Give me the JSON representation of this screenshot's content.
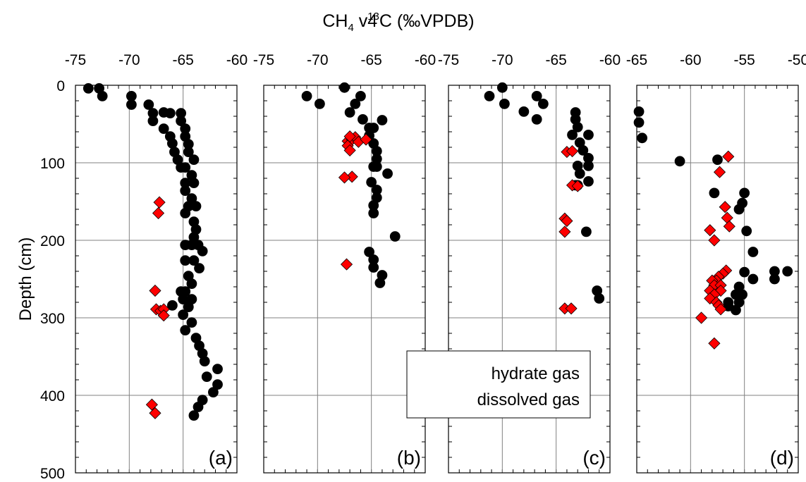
{
  "title": {
    "prefix": "CH",
    "subscript": "4",
    "middle": " v4",
    "superscript": "13",
    "suffix": "C (‰VPDB)"
  },
  "y_axis_label": "Depth (cm)",
  "legend": [
    "hydrate gas",
    "dissolved gas"
  ],
  "colors": {
    "hydrate": "#000000",
    "dissolved": "#ff0000",
    "grid": "#808080"
  },
  "chart_data": [
    {
      "type": "scatter",
      "panel_label": "(a)",
      "xlim": [
        -75,
        -60
      ],
      "x_ticks": [
        -75,
        -70,
        -65,
        -60
      ],
      "x_tick_labels": [
        "-75",
        "-70",
        "-65",
        "-60"
      ],
      "ylim": [
        0,
        500
      ],
      "y_ticks": [
        0,
        100,
        200,
        300,
        400,
        500
      ],
      "y_tick_labels": [
        "0",
        "100",
        "200",
        "300",
        "400",
        "500"
      ],
      "series": [
        {
          "marker": "circle",
          "color": "#000000",
          "points": [
            [
              -73.8,
              4
            ],
            [
              -72.8,
              4
            ],
            [
              -72.5,
              14
            ],
            [
              -69.8,
              14
            ],
            [
              -69.8,
              25
            ],
            [
              -68.2,
              25
            ],
            [
              -67.8,
              46
            ],
            [
              -67.8,
              36
            ],
            [
              -66.8,
              35
            ],
            [
              -66.2,
              36
            ],
            [
              -65.2,
              36
            ],
            [
              -65.2,
              46
            ],
            [
              -66.8,
              56
            ],
            [
              -66.2,
              66
            ],
            [
              -66,
              75
            ],
            [
              -65.8,
              86
            ],
            [
              -65.5,
              96
            ],
            [
              -65.2,
              106
            ],
            [
              -64.8,
              66
            ],
            [
              -64.8,
              56
            ],
            [
              -64.5,
              76
            ],
            [
              -64.5,
              86
            ],
            [
              -64,
              96
            ],
            [
              -64.8,
              106
            ],
            [
              -64.2,
              116
            ],
            [
              -64.8,
              126
            ],
            [
              -64,
              126
            ],
            [
              -64.8,
              136
            ],
            [
              -64.2,
              146
            ],
            [
              -64.5,
              156
            ],
            [
              -63.8,
              156
            ],
            [
              -64.8,
              165
            ],
            [
              -64,
              176
            ],
            [
              -63.8,
              186
            ],
            [
              -64,
              196
            ],
            [
              -64.8,
              206
            ],
            [
              -64.2,
              206
            ],
            [
              -63.6,
              206
            ],
            [
              -63.2,
              214
            ],
            [
              -64.8,
              226
            ],
            [
              -64,
              226
            ],
            [
              -63.5,
              236
            ],
            [
              -64.5,
              246
            ],
            [
              -64.2,
              256
            ],
            [
              -64.8,
              266
            ],
            [
              -65,
              276
            ],
            [
              -64.2,
              276
            ],
            [
              -65.2,
              266
            ],
            [
              -66,
              284
            ],
            [
              -64.5,
              286
            ],
            [
              -65,
              296
            ],
            [
              -64.8,
              316
            ],
            [
              -64.2,
              306
            ],
            [
              -63.8,
              326
            ],
            [
              -63.5,
              336
            ],
            [
              -63.2,
              346
            ],
            [
              -63,
              356
            ],
            [
              -61.8,
              366
            ],
            [
              -62.8,
              376
            ],
            [
              -61.8,
              386
            ],
            [
              -62.2,
              396
            ],
            [
              -63.2,
              406
            ],
            [
              -63.6,
              415
            ],
            [
              -64,
              426
            ]
          ]
        },
        {
          "marker": "diamond",
          "color": "#ff0000",
          "points": [
            [
              -67.2,
              151
            ],
            [
              -67.3,
              165
            ],
            [
              -67.6,
              265
            ],
            [
              -67.5,
              289
            ],
            [
              -67.1,
              291
            ],
            [
              -66.8,
              289
            ],
            [
              -66.8,
              297
            ],
            [
              -67.9,
              412
            ],
            [
              -67.6,
              423
            ]
          ]
        }
      ]
    },
    {
      "type": "scatter",
      "panel_label": "(b)",
      "xlim": [
        -75,
        -60
      ],
      "x_ticks": [
        -75,
        -70,
        -65,
        -60
      ],
      "x_tick_labels": [
        "-75",
        "-70",
        "-65",
        "-60"
      ],
      "ylim": [
        0,
        500
      ],
      "series": [
        {
          "marker": "circle",
          "color": "#000000",
          "points": [
            [
              -67.5,
              3
            ],
            [
              -71,
              14
            ],
            [
              -69.8,
              24
            ],
            [
              -66.5,
              24
            ],
            [
              -66,
              14
            ],
            [
              -67,
              35
            ],
            [
              -65.8,
              44
            ],
            [
              -64.8,
              55
            ],
            [
              -65.2,
              55
            ],
            [
              -64,
              45
            ],
            [
              -65.2,
              65
            ],
            [
              -64.8,
              75
            ],
            [
              -64.5,
              85
            ],
            [
              -64.5,
              95
            ],
            [
              -64.8,
              105
            ],
            [
              -64.5,
              105
            ],
            [
              -63.5,
              114
            ],
            [
              -65,
              125
            ],
            [
              -64.5,
              135
            ],
            [
              -64.5,
              145
            ],
            [
              -64.8,
              155
            ],
            [
              -64.8,
              165
            ],
            [
              -62.8,
              195
            ],
            [
              -65.2,
              215
            ],
            [
              -64.8,
              225
            ],
            [
              -64.8,
              235
            ],
            [
              -64,
              245
            ],
            [
              -64.2,
              255
            ]
          ]
        },
        {
          "marker": "diamond",
          "color": "#ff0000",
          "points": [
            [
              -67.2,
              72
            ],
            [
              -66.8,
              70
            ],
            [
              -66.5,
              67
            ],
            [
              -66.2,
              73
            ],
            [
              -67,
              66
            ],
            [
              -67.2,
              78
            ],
            [
              -67,
              84
            ],
            [
              -65.5,
              70
            ],
            [
              -66.8,
              118
            ],
            [
              -67.5,
              119
            ],
            [
              -67.3,
              231
            ]
          ]
        }
      ]
    },
    {
      "type": "scatter",
      "panel_label": "(c)",
      "xlim": [
        -75,
        -60
      ],
      "x_ticks": [
        -75,
        -70,
        -65,
        -60
      ],
      "x_tick_labels": [
        "-75",
        "-70",
        "-65",
        "-60"
      ],
      "ylim": [
        0,
        500
      ],
      "series": [
        {
          "marker": "circle",
          "color": "#000000",
          "points": [
            [
              -70,
              3
            ],
            [
              -71.2,
              14
            ],
            [
              -69.8,
              24
            ],
            [
              -68,
              34
            ],
            [
              -66.8,
              14
            ],
            [
              -66.2,
              24
            ],
            [
              -66.8,
              44
            ],
            [
              -63.2,
              35
            ],
            [
              -63.2,
              44
            ],
            [
              -63,
              54
            ],
            [
              -62,
              64
            ],
            [
              -63.5,
              64
            ],
            [
              -62.8,
              74
            ],
            [
              -62.5,
              84
            ],
            [
              -62,
              94
            ],
            [
              -63,
              104
            ],
            [
              -62,
              104
            ],
            [
              -62.8,
              114
            ],
            [
              -62,
              124
            ],
            [
              -63.2,
              129
            ],
            [
              -63,
              129
            ],
            [
              -62.2,
              189
            ],
            [
              -61.2,
              265
            ],
            [
              -61,
              275
            ]
          ]
        },
        {
          "marker": "diamond",
          "color": "#ff0000",
          "points": [
            [
              -64,
              86
            ],
            [
              -63.5,
              85
            ],
            [
              -63.5,
              129
            ],
            [
              -63,
              130
            ],
            [
              -64.2,
              172
            ],
            [
              -64,
              175
            ],
            [
              -64.2,
              189
            ],
            [
              -64.2,
              288
            ],
            [
              -63.6,
              288
            ]
          ]
        }
      ]
    },
    {
      "type": "scatter",
      "panel_label": "(d)",
      "xlim": [
        -65,
        -50
      ],
      "x_ticks": [
        -65,
        -60,
        -55,
        -50
      ],
      "x_tick_labels": [
        "-65",
        "-60",
        "-55",
        "-50"
      ],
      "ylim": [
        0,
        500
      ],
      "series": [
        {
          "marker": "circle",
          "color": "#000000",
          "points": [
            [
              -64.8,
              34
            ],
            [
              -64.8,
              48
            ],
            [
              -64.5,
              68
            ],
            [
              -61,
              98
            ],
            [
              -57.5,
              96
            ],
            [
              -57.8,
              139
            ],
            [
              -55,
              139
            ],
            [
              -55.2,
              152
            ],
            [
              -55.5,
              160
            ],
            [
              -54.8,
              188
            ],
            [
              -54.2,
              215
            ],
            [
              -55,
              241
            ],
            [
              -52.2,
              240
            ],
            [
              -51,
              240
            ],
            [
              -52.2,
              250
            ],
            [
              -54.2,
              250
            ],
            [
              -55.5,
              260
            ],
            [
              -55.8,
              270
            ],
            [
              -55.2,
              270
            ],
            [
              -55.5,
              280
            ],
            [
              -56.5,
              280
            ],
            [
              -55.8,
              290
            ],
            [
              -56.5,
              285
            ]
          ]
        },
        {
          "marker": "diamond",
          "color": "#ff0000",
          "points": [
            [
              -56.5,
              92
            ],
            [
              -57.3,
              112
            ],
            [
              -56.8,
              157
            ],
            [
              -56.6,
              171
            ],
            [
              -56.4,
              182
            ],
            [
              -58.2,
              187
            ],
            [
              -57.8,
              200
            ],
            [
              -56.7,
              239
            ],
            [
              -57,
              243
            ],
            [
              -57.4,
              247
            ],
            [
              -57.6,
              252
            ],
            [
              -58,
              252
            ],
            [
              -57.8,
              258
            ],
            [
              -57.2,
              258
            ],
            [
              -57.2,
              265
            ],
            [
              -58.2,
              265
            ],
            [
              -57.8,
              270
            ],
            [
              -58.2,
              275
            ],
            [
              -57.6,
              280
            ],
            [
              -57.4,
              284
            ],
            [
              -57.2,
              289
            ],
            [
              -59,
              300
            ],
            [
              -57.8,
              333
            ]
          ]
        }
      ]
    }
  ]
}
